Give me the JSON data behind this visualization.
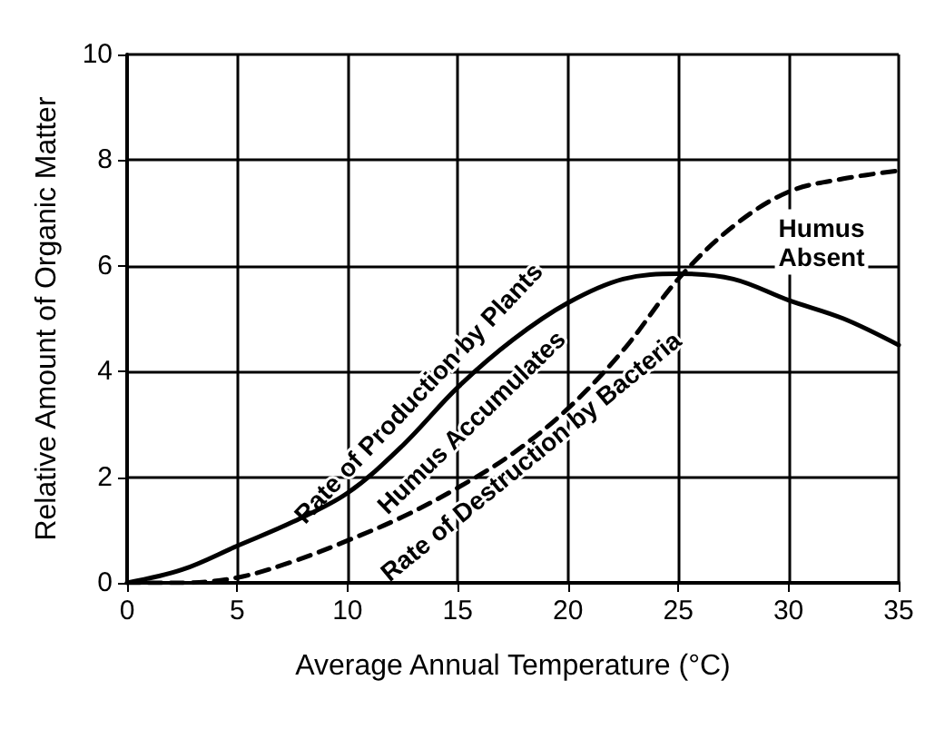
{
  "chart_data": {
    "type": "line",
    "xlabel": "Average Annual Temperature (°C)",
    "ylabel": "Relative Amount of Organic Matter",
    "x": [
      0,
      2.5,
      5,
      7.5,
      10,
      12.5,
      15,
      17.5,
      20,
      22.5,
      25,
      27.5,
      30,
      32.5,
      35
    ],
    "series": [
      {
        "name": "Rate of Production by Plants",
        "color": "#000000",
        "line_style": "solid",
        "values": [
          0,
          0.25,
          0.7,
          1.15,
          1.7,
          2.6,
          3.7,
          4.6,
          5.3,
          5.75,
          5.85,
          5.75,
          5.35,
          5.0,
          4.5
        ]
      },
      {
        "name": "Rate of Destruction by Bacteria",
        "color": "#000000",
        "line_style": "dashed",
        "values": [
          0,
          0,
          0.1,
          0.4,
          0.8,
          1.25,
          1.8,
          2.45,
          3.3,
          4.4,
          5.75,
          6.75,
          7.4,
          7.65,
          7.8
        ]
      }
    ],
    "annotations": [
      "Humus Accumulates",
      "Humus\nAbsent"
    ],
    "xlim": [
      0,
      35
    ],
    "ylim": [
      0,
      10
    ],
    "xticks": [
      0,
      5,
      10,
      15,
      20,
      25,
      30,
      35
    ],
    "yticks": [
      0,
      2,
      4,
      6,
      8,
      10
    ],
    "grid": true,
    "legend": false,
    "marker": "none"
  }
}
